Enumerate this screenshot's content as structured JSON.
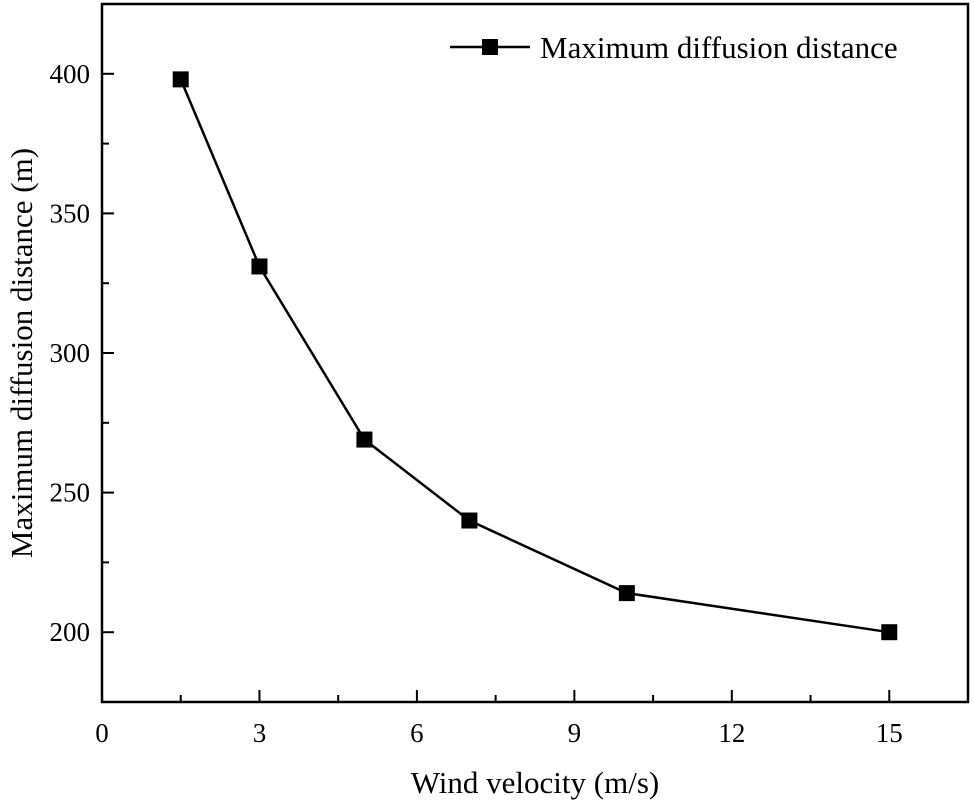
{
  "chart_data": {
    "type": "line",
    "title": "",
    "xlabel": "Wind velocity (m/s)",
    "ylabel": "Maximum diffusion distance (m)",
    "xlim": [
      0,
      16.5
    ],
    "ylim": [
      175,
      425
    ],
    "xticks": [
      0,
      3,
      6,
      9,
      12,
      15
    ],
    "xtick_labels": [
      "0",
      "3",
      "6",
      "9",
      "12",
      "15"
    ],
    "yticks": [
      200,
      250,
      300,
      350,
      400
    ],
    "ytick_labels": [
      "200",
      "250",
      "300",
      "350",
      "400"
    ],
    "grid": false,
    "legend_position": "top-right",
    "series": [
      {
        "name": "Maximum diffusion distance",
        "marker": "square",
        "color": "#000000",
        "x": [
          1.5,
          3,
          5,
          7,
          10,
          15
        ],
        "y": [
          398,
          331,
          269,
          240,
          214,
          200
        ]
      }
    ]
  }
}
